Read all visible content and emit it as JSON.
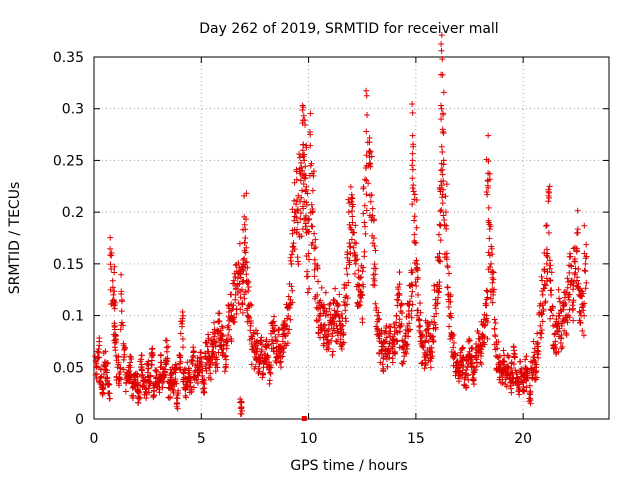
{
  "chart_data": {
    "type": "scatter",
    "title": "Day 262 of 2019, SRMTID for receiver mall",
    "xlabel": "GPS time / hours",
    "ylabel": "SRMTID / TECUs",
    "xlim": [
      0,
      24
    ],
    "ylim": [
      0,
      0.35
    ],
    "x_ticks": [
      0,
      5,
      10,
      15,
      20
    ],
    "x_tick_labels": [
      "0",
      "5",
      "10",
      "15",
      "20"
    ],
    "y_ticks": [
      0,
      0.05,
      0.1,
      0.15,
      0.2,
      0.25,
      0.3,
      0.35
    ],
    "y_tick_labels": [
      "0",
      "0.05",
      "0.1",
      "0.15",
      "0.2",
      "0.25",
      "0.3",
      "0.35"
    ],
    "grid": true,
    "marker": "plus",
    "color": "#e00000",
    "series": [
      {
        "name": "SRMTID",
        "points": [
          [
            0.1,
            0.05
          ],
          [
            0.2,
            0.065
          ],
          [
            0.3,
            0.04
          ],
          [
            0.4,
            0.03
          ],
          [
            0.5,
            0.055
          ],
          [
            0.6,
            0.045
          ],
          [
            0.7,
            0.025
          ],
          [
            0.8,
            0.145
          ],
          [
            0.9,
            0.12
          ],
          [
            0.95,
            0.09
          ],
          [
            1.0,
            0.08
          ],
          [
            1.1,
            0.05
          ],
          [
            1.2,
            0.04
          ],
          [
            1.3,
            0.115
          ],
          [
            1.4,
            0.06
          ],
          [
            1.5,
            0.035
          ],
          [
            1.6,
            0.045
          ],
          [
            1.7,
            0.05
          ],
          [
            1.8,
            0.03
          ],
          [
            1.9,
            0.04
          ],
          [
            2.0,
            0.035
          ],
          [
            2.1,
            0.025
          ],
          [
            2.2,
            0.05
          ],
          [
            2.3,
            0.04
          ],
          [
            2.4,
            0.03
          ],
          [
            2.5,
            0.045
          ],
          [
            2.6,
            0.035
          ],
          [
            2.7,
            0.06
          ],
          [
            2.8,
            0.03
          ],
          [
            2.9,
            0.04
          ],
          [
            3.0,
            0.035
          ],
          [
            3.1,
            0.05
          ],
          [
            3.2,
            0.04
          ],
          [
            3.3,
            0.045
          ],
          [
            3.4,
            0.065
          ],
          [
            3.5,
            0.03
          ],
          [
            3.6,
            0.04
          ],
          [
            3.7,
            0.035
          ],
          [
            3.8,
            0.045
          ],
          [
            3.9,
            0.02
          ],
          [
            4.0,
            0.05
          ],
          [
            4.1,
            0.092
          ],
          [
            4.2,
            0.04
          ],
          [
            4.3,
            0.03
          ],
          [
            4.4,
            0.045
          ],
          [
            4.5,
            0.035
          ],
          [
            4.6,
            0.06
          ],
          [
            4.7,
            0.04
          ],
          [
            4.8,
            0.05
          ],
          [
            4.9,
            0.045
          ],
          [
            5.0,
            0.055
          ],
          [
            5.1,
            0.035
          ],
          [
            5.2,
            0.06
          ],
          [
            5.3,
            0.07
          ],
          [
            5.4,
            0.05
          ],
          [
            5.5,
            0.065
          ],
          [
            5.6,
            0.075
          ],
          [
            5.7,
            0.06
          ],
          [
            5.8,
            0.085
          ],
          [
            5.9,
            0.07
          ],
          [
            6.0,
            0.08
          ],
          [
            6.1,
            0.06
          ],
          [
            6.2,
            0.075
          ],
          [
            6.3,
            0.095
          ],
          [
            6.4,
            0.1
          ],
          [
            6.5,
            0.11
          ],
          [
            6.6,
            0.12
          ],
          [
            6.7,
            0.13
          ],
          [
            6.8,
            0.14
          ],
          [
            6.85,
            0.01
          ],
          [
            6.9,
            0.125
          ],
          [
            7.0,
            0.155
          ],
          [
            7.05,
            0.175
          ],
          [
            7.1,
            0.14
          ],
          [
            7.2,
            0.11
          ],
          [
            7.3,
            0.09
          ],
          [
            7.4,
            0.07
          ],
          [
            7.5,
            0.06
          ],
          [
            7.6,
            0.075
          ],
          [
            7.7,
            0.055
          ],
          [
            7.8,
            0.065
          ],
          [
            7.9,
            0.05
          ],
          [
            8.0,
            0.07
          ],
          [
            8.1,
            0.06
          ],
          [
            8.2,
            0.045
          ],
          [
            8.3,
            0.075
          ],
          [
            8.4,
            0.085
          ],
          [
            8.5,
            0.065
          ],
          [
            8.6,
            0.07
          ],
          [
            8.7,
            0.06
          ],
          [
            8.8,
            0.075
          ],
          [
            8.9,
            0.08
          ],
          [
            9.0,
            0.09
          ],
          [
            9.1,
            0.11
          ],
          [
            9.2,
            0.15
          ],
          [
            9.3,
            0.17
          ],
          [
            9.4,
            0.2
          ],
          [
            9.5,
            0.19
          ],
          [
            9.6,
            0.21
          ],
          [
            9.7,
            0.235
          ],
          [
            9.75,
            0.265
          ],
          [
            9.8,
            0.25
          ],
          [
            9.85,
            0.22
          ],
          [
            9.9,
            0.18
          ],
          [
            10.0,
            0.16
          ],
          [
            10.1,
            0.245
          ],
          [
            10.2,
            0.2
          ],
          [
            10.3,
            0.15
          ],
          [
            10.4,
            0.12
          ],
          [
            10.5,
            0.1
          ],
          [
            10.6,
            0.11
          ],
          [
            10.7,
            0.09
          ],
          [
            10.8,
            0.1
          ],
          [
            10.9,
            0.085
          ],
          [
            11.0,
            0.095
          ],
          [
            11.1,
            0.08
          ],
          [
            11.2,
            0.105
          ],
          [
            11.3,
            0.09
          ],
          [
            11.4,
            0.1
          ],
          [
            11.5,
            0.085
          ],
          [
            11.6,
            0.09
          ],
          [
            11.7,
            0.11
          ],
          [
            11.8,
            0.14
          ],
          [
            11.9,
            0.17
          ],
          [
            12.0,
            0.21
          ],
          [
            12.1,
            0.18
          ],
          [
            12.2,
            0.15
          ],
          [
            12.3,
            0.13
          ],
          [
            12.4,
            0.11
          ],
          [
            12.5,
            0.12
          ],
          [
            12.6,
            0.19
          ],
          [
            12.7,
            0.255
          ],
          [
            12.8,
            0.245
          ],
          [
            12.9,
            0.21
          ],
          [
            13.0,
            0.17
          ],
          [
            13.1,
            0.14
          ],
          [
            13.2,
            0.1
          ],
          [
            13.3,
            0.08
          ],
          [
            13.4,
            0.07
          ],
          [
            13.5,
            0.06
          ],
          [
            13.6,
            0.075
          ],
          [
            13.7,
            0.065
          ],
          [
            13.8,
            0.08
          ],
          [
            13.9,
            0.07
          ],
          [
            14.0,
            0.075
          ],
          [
            14.1,
            0.1
          ],
          [
            14.2,
            0.12
          ],
          [
            14.3,
            0.09
          ],
          [
            14.4,
            0.07
          ],
          [
            14.5,
            0.08
          ],
          [
            14.6,
            0.09
          ],
          [
            14.7,
            0.11
          ],
          [
            14.8,
            0.13
          ],
          [
            14.85,
            0.25
          ],
          [
            14.9,
            0.22
          ],
          [
            15.0,
            0.17
          ],
          [
            15.1,
            0.12
          ],
          [
            15.2,
            0.09
          ],
          [
            15.3,
            0.07
          ],
          [
            15.4,
            0.06
          ],
          [
            15.5,
            0.08
          ],
          [
            15.6,
            0.075
          ],
          [
            15.7,
            0.065
          ],
          [
            15.8,
            0.08
          ],
          [
            15.9,
            0.11
          ],
          [
            16.0,
            0.13
          ],
          [
            16.1,
            0.16
          ],
          [
            16.15,
            0.22
          ],
          [
            16.2,
            0.3
          ],
          [
            16.25,
            0.28
          ],
          [
            16.3,
            0.25
          ],
          [
            16.4,
            0.2
          ],
          [
            16.5,
            0.12
          ],
          [
            16.6,
            0.1
          ],
          [
            16.7,
            0.08
          ],
          [
            16.8,
            0.06
          ],
          [
            16.9,
            0.05
          ],
          [
            17.0,
            0.045
          ],
          [
            17.1,
            0.055
          ],
          [
            17.2,
            0.06
          ],
          [
            17.3,
            0.04
          ],
          [
            17.4,
            0.05
          ],
          [
            17.5,
            0.065
          ],
          [
            17.6,
            0.055
          ],
          [
            17.7,
            0.045
          ],
          [
            17.8,
            0.06
          ],
          [
            17.9,
            0.07
          ],
          [
            18.0,
            0.065
          ],
          [
            18.1,
            0.08
          ],
          [
            18.2,
            0.09
          ],
          [
            18.3,
            0.1
          ],
          [
            18.35,
            0.23
          ],
          [
            18.4,
            0.19
          ],
          [
            18.5,
            0.15
          ],
          [
            18.6,
            0.12
          ],
          [
            18.7,
            0.08
          ],
          [
            18.8,
            0.06
          ],
          [
            18.9,
            0.05
          ],
          [
            19.0,
            0.045
          ],
          [
            19.1,
            0.055
          ],
          [
            19.2,
            0.04
          ],
          [
            19.3,
            0.05
          ],
          [
            19.4,
            0.035
          ],
          [
            19.5,
            0.045
          ],
          [
            19.6,
            0.06
          ],
          [
            19.7,
            0.04
          ],
          [
            19.8,
            0.03
          ],
          [
            19.9,
            0.045
          ],
          [
            20.0,
            0.035
          ],
          [
            20.1,
            0.05
          ],
          [
            20.2,
            0.04
          ],
          [
            20.3,
            0.025
          ],
          [
            20.4,
            0.045
          ],
          [
            20.5,
            0.06
          ],
          [
            20.6,
            0.05
          ],
          [
            20.7,
            0.07
          ],
          [
            20.8,
            0.09
          ],
          [
            20.9,
            0.11
          ],
          [
            21.0,
            0.13
          ],
          [
            21.1,
            0.15
          ],
          [
            21.2,
            0.18
          ],
          [
            21.3,
            0.12
          ],
          [
            21.4,
            0.09
          ],
          [
            21.5,
            0.075
          ],
          [
            21.6,
            0.085
          ],
          [
            21.7,
            0.1
          ],
          [
            21.8,
            0.09
          ],
          [
            21.9,
            0.11
          ],
          [
            22.0,
            0.1
          ],
          [
            22.1,
            0.12
          ],
          [
            22.2,
            0.13
          ],
          [
            22.3,
            0.11
          ],
          [
            22.4,
            0.14
          ],
          [
            22.5,
            0.165
          ],
          [
            22.6,
            0.12
          ],
          [
            22.7,
            0.1
          ],
          [
            22.8,
            0.105
          ],
          [
            22.9,
            0.15
          ]
        ]
      }
    ],
    "extra_markers": [
      {
        "name": "data-gap-marker",
        "x": 9.8,
        "y": 0
      }
    ]
  }
}
